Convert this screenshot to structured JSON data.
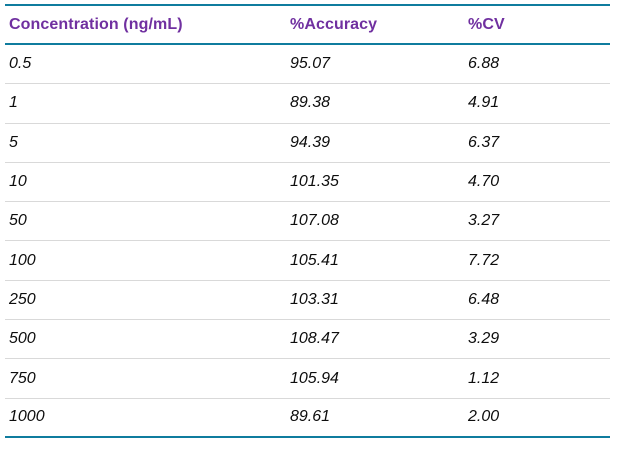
{
  "table": {
    "columns": [
      "Concentration (ng/mL)",
      "%Accuracy",
      "%CV"
    ],
    "rows": [
      [
        "0.5",
        "95.07",
        "6.88"
      ],
      [
        "1",
        "89.38",
        "4.91"
      ],
      [
        "5",
        "94.39",
        "6.37"
      ],
      [
        "10",
        "101.35",
        "4.70"
      ],
      [
        "50",
        "107.08",
        "3.27"
      ],
      [
        "100",
        "105.41",
        "7.72"
      ],
      [
        "250",
        "103.31",
        "6.48"
      ],
      [
        "500",
        "108.47",
        "3.29"
      ],
      [
        "750",
        "105.94",
        "1.12"
      ],
      [
        "1000",
        "89.61",
        "2.00"
      ]
    ],
    "colors": {
      "header_text": "#7030A0",
      "rule_teal": "#0F7C9E",
      "row_divider": "#D9D9D9",
      "body_text": "#0D0D0D"
    }
  },
  "chart_data": {
    "type": "table",
    "title": "",
    "columns": [
      "Concentration (ng/mL)",
      "%Accuracy",
      "%CV"
    ],
    "x": [
      0.5,
      1,
      5,
      10,
      50,
      100,
      250,
      500,
      750,
      1000
    ],
    "series": [
      {
        "name": "%Accuracy",
        "values": [
          95.07,
          89.38,
          94.39,
          101.35,
          107.08,
          105.41,
          103.31,
          108.47,
          105.94,
          89.61
        ]
      },
      {
        "name": "%CV",
        "values": [
          6.88,
          4.91,
          6.37,
          4.7,
          3.27,
          7.72,
          6.48,
          3.29,
          1.12,
          2.0
        ]
      }
    ],
    "layout_hints": {
      "header_color": "#7030A0",
      "rule_color": "#0F7C9E",
      "body_style": "italic",
      "alignment": "left"
    }
  }
}
